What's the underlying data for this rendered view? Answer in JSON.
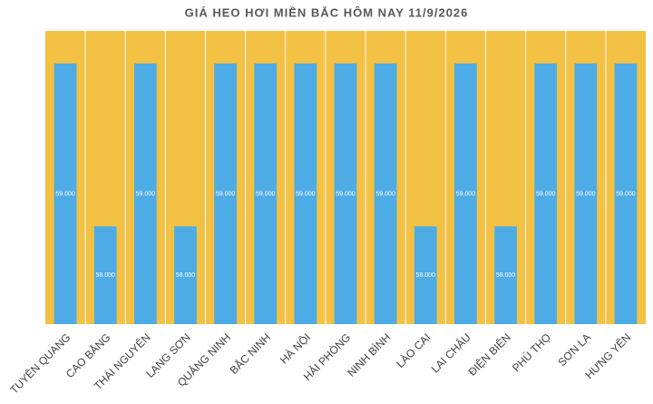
{
  "chart_data": {
    "type": "bar",
    "title": "GIÁ HEO HƠI MIỀN BẮC HÔM NAY 11/9/2026",
    "categories": [
      "TUYÊN QUANG",
      "CAO BẰNG",
      "THÁI NGUYÊN",
      "LẠNG SƠN",
      "QUẢNG NINH",
      "BẮC NINH",
      "HÀ NỘI",
      "HẢI PHÒNG",
      "NINH BÌNH",
      "LÀO CAI",
      "LAI CHÂU",
      "ĐIỆN BIÊN",
      "PHÚ THỌ",
      "SƠN LA",
      "HƯNG YÊN"
    ],
    "values": [
      59000,
      58000,
      59000,
      58000,
      59000,
      59000,
      59000,
      59000,
      59000,
      58000,
      59000,
      58000,
      59000,
      59000,
      59000
    ],
    "value_labels": [
      "59.000",
      "58.000",
      "59.000",
      "58.000",
      "59.000",
      "59.000",
      "59.000",
      "59.000",
      "59.000",
      "58.000",
      "59.000",
      "58.000",
      "59.000",
      "59.000",
      "59.000"
    ],
    "color": "#4dabe6",
    "background": "#f3c143",
    "ylim": [
      57400,
      59200
    ]
  }
}
